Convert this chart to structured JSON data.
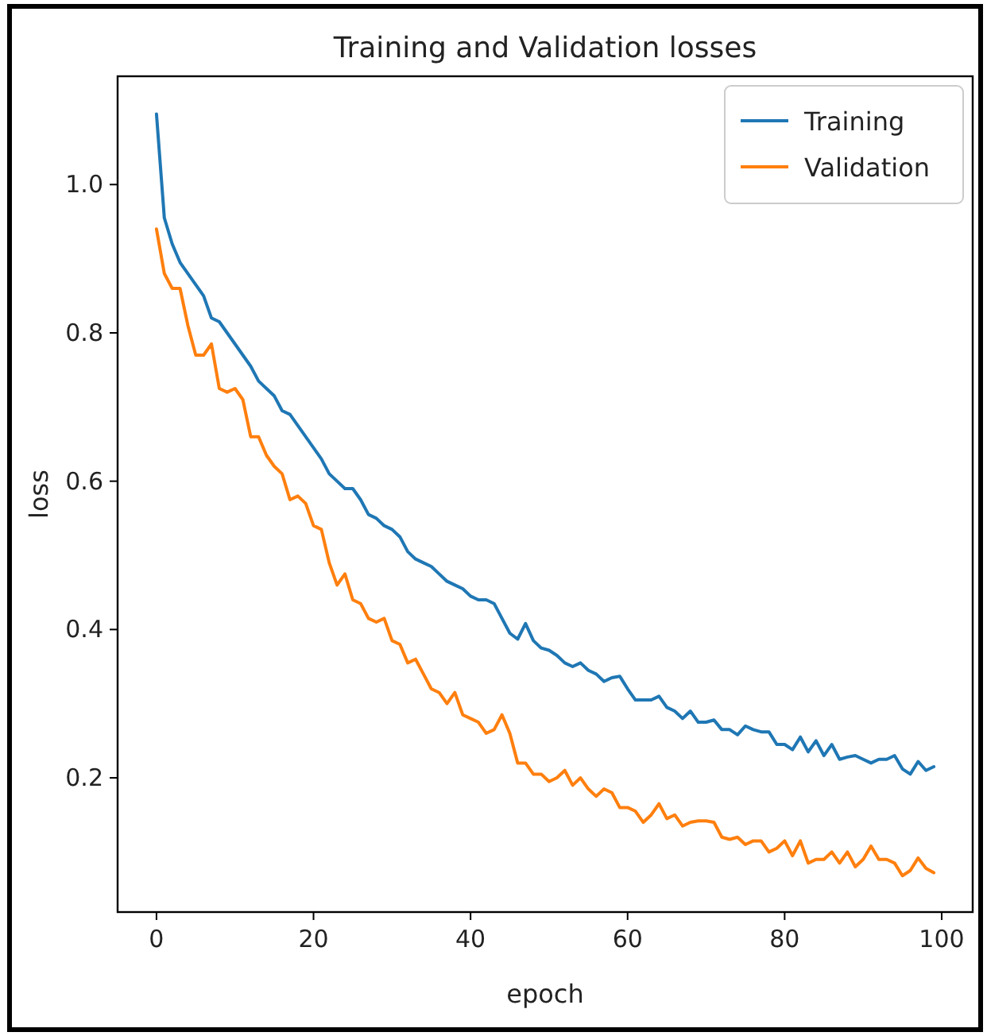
{
  "chart_data": {
    "type": "line",
    "title": "Training and Validation losses",
    "xlabel": "epoch",
    "ylabel": "loss",
    "x": [
      0,
      1,
      2,
      3,
      4,
      5,
      6,
      7,
      8,
      9,
      10,
      11,
      12,
      13,
      14,
      15,
      16,
      17,
      18,
      19,
      20,
      21,
      22,
      23,
      24,
      25,
      26,
      27,
      28,
      29,
      30,
      31,
      32,
      33,
      34,
      35,
      36,
      37,
      38,
      39,
      40,
      41,
      42,
      43,
      44,
      45,
      46,
      47,
      48,
      49,
      50,
      51,
      52,
      53,
      54,
      55,
      56,
      57,
      58,
      59,
      60,
      61,
      62,
      63,
      64,
      65,
      66,
      67,
      68,
      69,
      70,
      71,
      72,
      73,
      74,
      75,
      76,
      77,
      78,
      79,
      80,
      81,
      82,
      83,
      84,
      85,
      86,
      87,
      88,
      89,
      90,
      91,
      92,
      93,
      94,
      95,
      96,
      97,
      98,
      99
    ],
    "series": [
      {
        "name": "Training",
        "color": "#1f77b4",
        "values": [
          1.095,
          0.955,
          0.92,
          0.895,
          0.88,
          0.865,
          0.85,
          0.82,
          0.815,
          0.8,
          0.785,
          0.77,
          0.755,
          0.735,
          0.725,
          0.715,
          0.695,
          0.69,
          0.675,
          0.66,
          0.645,
          0.63,
          0.61,
          0.6,
          0.59,
          0.59,
          0.575,
          0.555,
          0.55,
          0.54,
          0.535,
          0.525,
          0.505,
          0.495,
          0.49,
          0.485,
          0.475,
          0.465,
          0.46,
          0.455,
          0.445,
          0.44,
          0.44,
          0.435,
          0.415,
          0.395,
          0.387,
          0.408,
          0.385,
          0.375,
          0.372,
          0.365,
          0.355,
          0.35,
          0.355,
          0.345,
          0.34,
          0.33,
          0.335,
          0.337,
          0.32,
          0.305,
          0.305,
          0.305,
          0.31,
          0.295,
          0.29,
          0.28,
          0.29,
          0.275,
          0.275,
          0.278,
          0.265,
          0.265,
          0.258,
          0.27,
          0.265,
          0.262,
          0.262,
          0.245,
          0.245,
          0.238,
          0.255,
          0.235,
          0.25,
          0.23,
          0.245,
          0.225,
          0.228,
          0.23,
          0.225,
          0.22,
          0.225,
          0.225,
          0.23,
          0.212,
          0.205,
          0.222,
          0.21,
          0.215
        ]
      },
      {
        "name": "Validation",
        "color": "#ff7f0e",
        "values": [
          0.94,
          0.88,
          0.86,
          0.86,
          0.81,
          0.77,
          0.77,
          0.785,
          0.725,
          0.72,
          0.725,
          0.71,
          0.66,
          0.66,
          0.635,
          0.62,
          0.61,
          0.575,
          0.58,
          0.57,
          0.54,
          0.535,
          0.49,
          0.46,
          0.475,
          0.44,
          0.435,
          0.415,
          0.41,
          0.415,
          0.385,
          0.38,
          0.355,
          0.36,
          0.34,
          0.32,
          0.315,
          0.3,
          0.315,
          0.285,
          0.28,
          0.275,
          0.26,
          0.265,
          0.285,
          0.26,
          0.22,
          0.22,
          0.205,
          0.205,
          0.195,
          0.2,
          0.21,
          0.19,
          0.2,
          0.185,
          0.175,
          0.185,
          0.18,
          0.16,
          0.16,
          0.155,
          0.14,
          0.15,
          0.165,
          0.145,
          0.15,
          0.135,
          0.14,
          0.142,
          0.142,
          0.14,
          0.12,
          0.117,
          0.12,
          0.11,
          0.115,
          0.115,
          0.1,
          0.105,
          0.115,
          0.095,
          0.115,
          0.085,
          0.09,
          0.09,
          0.1,
          0.085,
          0.1,
          0.08,
          0.09,
          0.108,
          0.09,
          0.09,
          0.085,
          0.068,
          0.075,
          0.092,
          0.078,
          0.072
        ]
      }
    ],
    "xlim": [
      -4.95,
      103.95
    ],
    "xticks": [
      0,
      20,
      40,
      60,
      80,
      100
    ],
    "ylim": [
      0.019,
      1.146
    ],
    "yticks": [
      {
        "value": 0.2,
        "label": "0.2"
      },
      {
        "value": 0.4,
        "label": "0.4"
      },
      {
        "value": 0.6,
        "label": "0.6"
      },
      {
        "value": 0.8,
        "label": "0.8"
      },
      {
        "value": 1.0,
        "label": "1.0"
      }
    ],
    "legend": "top right",
    "grid": false,
    "line_style": "solid",
    "marker": "none"
  }
}
